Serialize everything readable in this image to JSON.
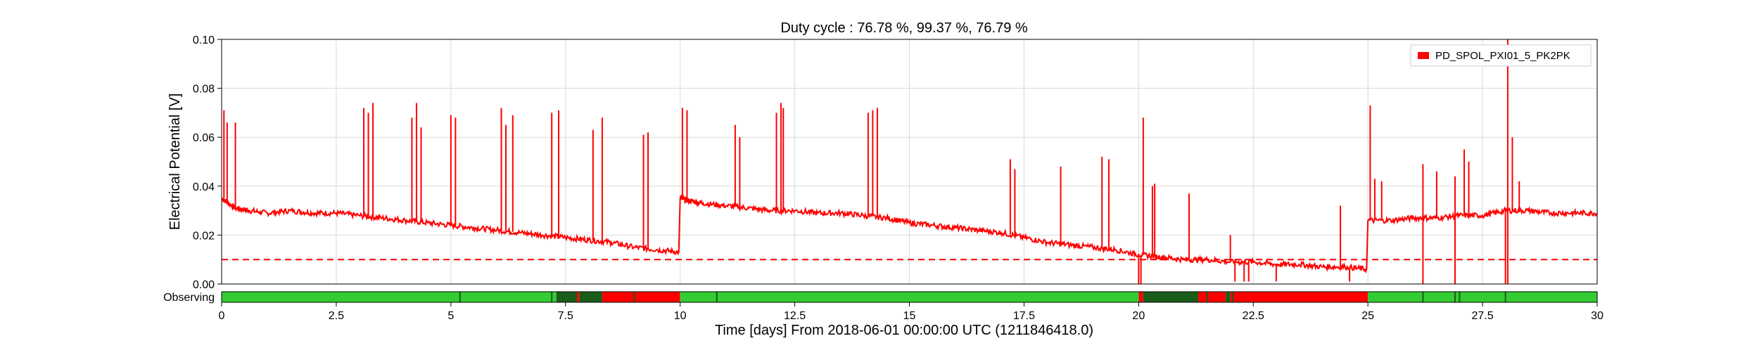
{
  "chart_data": {
    "type": "line",
    "title": "Duty cycle : 76.78 %, 99.37 %, 76.79 %",
    "xlabel": "Time [days] From 2018-06-01 00:00:00 UTC (1211846418.0)",
    "ylabel": "Electrical Potential [V]",
    "xlim": [
      0,
      30
    ],
    "ylim": [
      0,
      0.1
    ],
    "x_ticks": [
      0,
      2.5,
      5,
      7.5,
      10,
      12.5,
      15,
      17.5,
      20,
      22.5,
      25,
      27.5,
      30
    ],
    "x_tick_labels": [
      "0",
      "2.5",
      "5",
      "7.5",
      "10",
      "12.5",
      "15",
      "17.5",
      "20",
      "22.5",
      "25",
      "27.5",
      "30"
    ],
    "y_ticks": [
      0,
      0.02,
      0.04,
      0.06,
      0.08,
      0.1
    ],
    "y_tick_labels": [
      "0.00",
      "0.02",
      "0.04",
      "0.06",
      "0.08",
      "0.10"
    ],
    "grid": true,
    "legend_position": "top-right",
    "series": [
      {
        "name": "PD_SPOL_PXI01_5_PK2PK",
        "color": "#ff0000",
        "x": [
          0,
          0.3,
          0.6,
          1.0,
          1.5,
          2.0,
          2.5,
          3.0,
          3.5,
          4.0,
          4.5,
          5.0,
          5.5,
          6.0,
          6.5,
          7.0,
          7.5,
          8.0,
          8.5,
          9.0,
          9.5,
          9.97,
          10.0,
          10.2,
          10.5,
          11.0,
          11.5,
          12.0,
          12.5,
          13.0,
          13.5,
          14.0,
          14.5,
          15.0,
          15.5,
          16.0,
          16.5,
          17.0,
          17.5,
          18.0,
          18.5,
          19.0,
          19.5,
          20.0,
          20.5,
          21.0,
          21.5,
          22.0,
          22.5,
          23.0,
          23.5,
          24.0,
          24.5,
          24.97,
          25.0,
          25.5,
          26.0,
          26.5,
          27.0,
          27.5,
          28.0,
          28.5,
          29.0,
          29.5,
          30.0
        ],
        "y": [
          0.035,
          0.031,
          0.03,
          0.029,
          0.03,
          0.029,
          0.029,
          0.028,
          0.027,
          0.026,
          0.025,
          0.024,
          0.023,
          0.022,
          0.021,
          0.02,
          0.019,
          0.018,
          0.017,
          0.015,
          0.014,
          0.013,
          0.035,
          0.034,
          0.033,
          0.032,
          0.031,
          0.03,
          0.03,
          0.029,
          0.029,
          0.028,
          0.027,
          0.025,
          0.024,
          0.023,
          0.022,
          0.021,
          0.019,
          0.017,
          0.016,
          0.015,
          0.014,
          0.012,
          0.011,
          0.01,
          0.01,
          0.009,
          0.009,
          0.008,
          0.008,
          0.007,
          0.007,
          0.006,
          0.026,
          0.026,
          0.027,
          0.027,
          0.028,
          0.028,
          0.03,
          0.03,
          0.029,
          0.029,
          0.029
        ],
        "spikes": [
          [
            0.05,
            0.071
          ],
          [
            0.12,
            0.066
          ],
          [
            0.3,
            0.066
          ],
          [
            3.1,
            0.072
          ],
          [
            3.2,
            0.07
          ],
          [
            3.3,
            0.074
          ],
          [
            4.15,
            0.068
          ],
          [
            4.25,
            0.074
          ],
          [
            4.35,
            0.064
          ],
          [
            5.0,
            0.069
          ],
          [
            5.1,
            0.068
          ],
          [
            6.1,
            0.072
          ],
          [
            6.2,
            0.065
          ],
          [
            6.35,
            0.069
          ],
          [
            7.2,
            0.07
          ],
          [
            7.35,
            0.071
          ],
          [
            8.1,
            0.063
          ],
          [
            8.3,
            0.068
          ],
          [
            9.2,
            0.061
          ],
          [
            9.3,
            0.062
          ],
          [
            10.05,
            0.072
          ],
          [
            10.15,
            0.071
          ],
          [
            11.2,
            0.065
          ],
          [
            11.3,
            0.06
          ],
          [
            12.1,
            0.07
          ],
          [
            12.2,
            0.074
          ],
          [
            12.25,
            0.072
          ],
          [
            14.1,
            0.07
          ],
          [
            14.2,
            0.071
          ],
          [
            14.3,
            0.072
          ],
          [
            17.2,
            0.051
          ],
          [
            17.3,
            0.047
          ],
          [
            18.3,
            0.048
          ],
          [
            19.2,
            0.052
          ],
          [
            19.35,
            0.051
          ],
          [
            20.1,
            0.068
          ],
          [
            20.3,
            0.04
          ],
          [
            20.35,
            0.041
          ],
          [
            21.1,
            0.037
          ],
          [
            22.0,
            0.02
          ],
          [
            24.4,
            0.032
          ],
          [
            25.05,
            0.073
          ],
          [
            25.15,
            0.043
          ],
          [
            25.3,
            0.042
          ],
          [
            26.2,
            0.049
          ],
          [
            26.5,
            0.046
          ],
          [
            26.9,
            0.044
          ],
          [
            27.1,
            0.055
          ],
          [
            27.2,
            0.05
          ],
          [
            28.05,
            0.1
          ],
          [
            28.15,
            0.06
          ],
          [
            28.3,
            0.042
          ]
        ],
        "dips": [
          [
            20.0,
            0.0
          ],
          [
            20.05,
            0.0
          ],
          [
            22.1,
            0.001
          ],
          [
            22.3,
            0.001
          ],
          [
            22.4,
            0.001
          ],
          [
            23.0,
            0.001
          ],
          [
            24.6,
            0.001
          ],
          [
            26.2,
            0.0
          ],
          [
            26.9,
            0.0
          ],
          [
            28.0,
            0.0
          ],
          [
            28.05,
            0.0
          ]
        ]
      }
    ],
    "threshold": {
      "value": 0.01,
      "style": "dashed",
      "color": "#ff0000"
    },
    "segments": {
      "label": "Observing",
      "colors": {
        "active": "#33cc33",
        "flag": "#1a5c1a",
        "inactive": "#ff0000"
      },
      "tracks": [
        {
          "state": "active",
          "from": 0,
          "to": 7.3
        },
        {
          "state": "flag",
          "from": 7.3,
          "to": 7.75
        },
        {
          "state": "inactive",
          "from": 7.75,
          "to": 7.8
        },
        {
          "state": "flag",
          "from": 7.8,
          "to": 8.3
        },
        {
          "state": "inactive",
          "from": 8.3,
          "to": 10.0
        },
        {
          "state": "active",
          "from": 10.0,
          "to": 20.0
        },
        {
          "state": "inactive",
          "from": 20.0,
          "to": 20.1
        },
        {
          "state": "flag",
          "from": 20.1,
          "to": 21.3
        },
        {
          "state": "inactive",
          "from": 21.3,
          "to": 21.9
        },
        {
          "state": "flag",
          "from": 21.9,
          "to": 22.0
        },
        {
          "state": "inactive",
          "from": 22.0,
          "to": 25.0
        },
        {
          "state": "active",
          "from": 25.0,
          "to": 30.0
        }
      ],
      "ticks": [
        5.2,
        7.2,
        9.0,
        10.8,
        20.3,
        21.0,
        21.5,
        22.05,
        26.2,
        26.9,
        27.0,
        28.0
      ]
    }
  }
}
